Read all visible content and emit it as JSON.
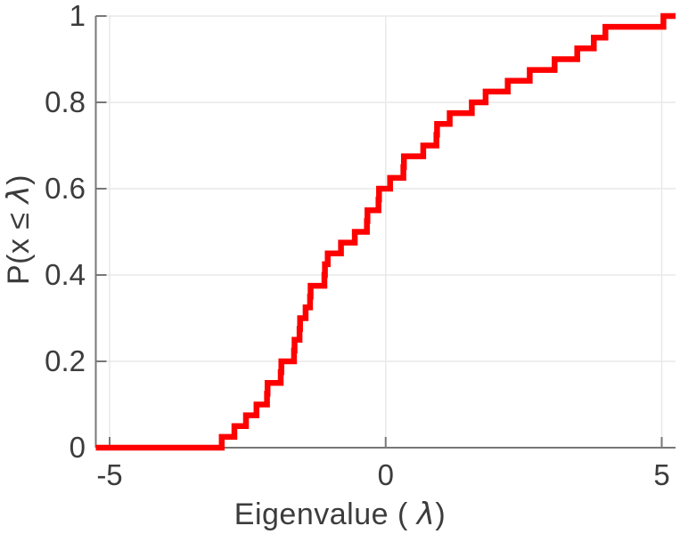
{
  "figure": {
    "background_color": "#ffffff",
    "axis_color": "#777777",
    "grid_color": "#e9e9e9",
    "tick_label_color": "#3c3c3c"
  },
  "chart_data": {
    "type": "line",
    "subtype": "empirical-cdf-stairs",
    "title": "",
    "xlabel": "Eigenvalue ( λ)",
    "ylabel": "P(x ≤ λ)",
    "xlabel_parts": [
      "Eigenvalue ( ",
      "λ",
      ")"
    ],
    "ylabel_parts": [
      "P(x ≤ ",
      "λ",
      ")"
    ],
    "n_samples": 40,
    "cdf_step": 0.025,
    "x_values": [
      -2.97,
      -2.74,
      -2.53,
      -2.34,
      -2.15,
      -2.14,
      -1.9,
      -1.89,
      -1.66,
      -1.65,
      -1.56,
      -1.55,
      -1.45,
      -1.37,
      -1.36,
      -1.11,
      -1.1,
      -1.05,
      -0.81,
      -0.56,
      -0.34,
      -0.33,
      -0.13,
      -0.12,
      0.08,
      0.32,
      0.33,
      0.68,
      0.92,
      0.93,
      1.16,
      1.56,
      1.81,
      2.21,
      2.61,
      3.06,
      3.47,
      3.77,
      3.98,
      5.03
    ],
    "xlim": [
      -5.25,
      5.25
    ],
    "ylim": [
      0,
      1
    ],
    "xticks": [
      {
        "value": -5,
        "label": "-5"
      },
      {
        "value": 0,
        "label": "0"
      },
      {
        "value": 5,
        "label": "5"
      }
    ],
    "yticks": [
      {
        "value": 0,
        "label": "0"
      },
      {
        "value": 0.2,
        "label": "0.2"
      },
      {
        "value": 0.4,
        "label": "0.4"
      },
      {
        "value": 0.6,
        "label": "0.6"
      },
      {
        "value": 0.8,
        "label": "0.8"
      },
      {
        "value": 1,
        "label": "1"
      }
    ],
    "grid": true,
    "line_color": "#ff0000",
    "line_width": 6.5
  }
}
